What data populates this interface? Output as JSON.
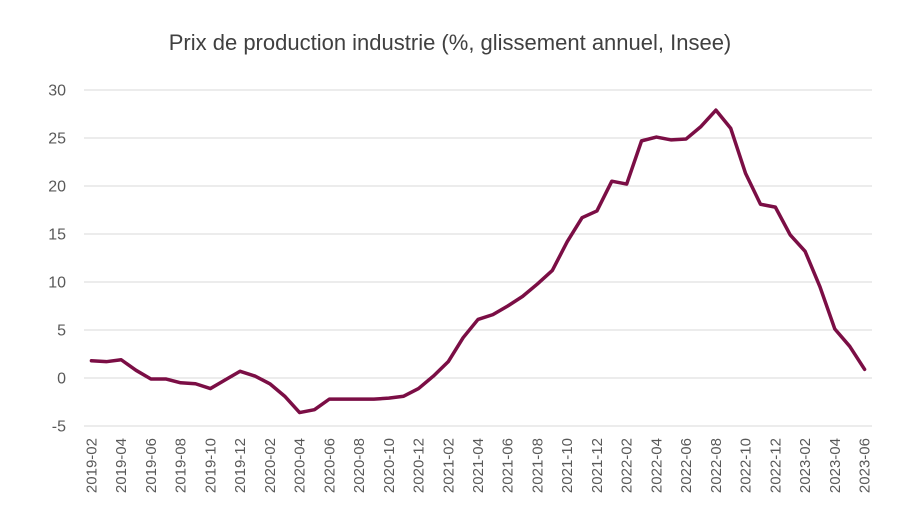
{
  "chart_data": {
    "type": "line",
    "title": "Prix de production industrie (%, glissement annuel, Insee)",
    "xlabel": "",
    "ylabel": "",
    "ylim": [
      -5,
      30
    ],
    "yticks": [
      30,
      25,
      20,
      15,
      10,
      5,
      0,
      -5
    ],
    "grid": true,
    "line_color": "#7B0E45",
    "x": [
      "2019-02",
      "2019-03",
      "2019-04",
      "2019-05",
      "2019-06",
      "2019-07",
      "2019-08",
      "2019-09",
      "2019-10",
      "2019-11",
      "2019-12",
      "2020-01",
      "2020-02",
      "2020-03",
      "2020-04",
      "2020-05",
      "2020-06",
      "2020-07",
      "2020-08",
      "2020-09",
      "2020-10",
      "2020-11",
      "2020-12",
      "2021-01",
      "2021-02",
      "2021-03",
      "2021-04",
      "2021-05",
      "2021-06",
      "2021-07",
      "2021-08",
      "2021-09",
      "2021-10",
      "2021-11",
      "2021-12",
      "2022-01",
      "2022-02",
      "2022-03",
      "2022-04",
      "2022-05",
      "2022-06",
      "2022-07",
      "2022-08",
      "2022-09",
      "2022-10",
      "2022-11",
      "2022-12",
      "2023-01",
      "2023-02",
      "2023-03",
      "2023-04",
      "2023-05",
      "2023-06"
    ],
    "xtick_labels": [
      "2019-02",
      "2019-04",
      "2019-06",
      "2019-08",
      "2019-10",
      "2019-12",
      "2020-02",
      "2020-04",
      "2020-06",
      "2020-08",
      "2020-10",
      "2020-12",
      "2021-02",
      "2021-04",
      "2021-06",
      "2021-08",
      "2021-10",
      "2021-12",
      "2022-02",
      "2022-04",
      "2022-06",
      "2022-08",
      "2022-10",
      "2022-12",
      "2023-02",
      "2023-04",
      "2023-06"
    ],
    "series": [
      {
        "values": [
          1.8,
          1.7,
          1.9,
          0.8,
          -0.1,
          -0.1,
          -0.5,
          -0.6,
          -1.1,
          -0.2,
          0.7,
          0.2,
          -0.6,
          -1.9,
          -3.6,
          -3.3,
          -2.2,
          -2.2,
          -2.2,
          -2.2,
          -2.1,
          -1.9,
          -1.1,
          0.2,
          1.7,
          4.2,
          6.1,
          6.6,
          7.5,
          8.5,
          9.8,
          11.2,
          14.2,
          16.7,
          17.4,
          20.5,
          20.2,
          24.7,
          25.1,
          24.8,
          24.9,
          26.2,
          27.9,
          26.0,
          21.3,
          18.1,
          17.8,
          14.9,
          13.2,
          9.5,
          5.1,
          3.3,
          0.9
        ]
      }
    ]
  }
}
